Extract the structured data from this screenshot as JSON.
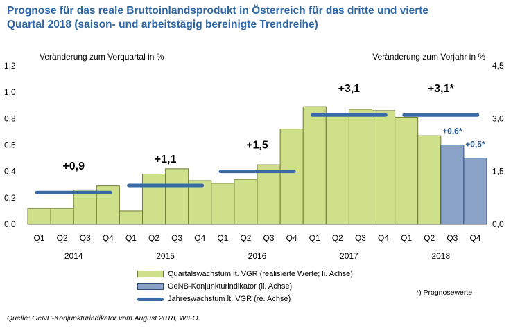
{
  "chart_data": {
    "type": "bar",
    "title_line1": "Prognose für das reale Bruttoinlandsprodukt in Österreich für das dritte und vierte",
    "title_line2": "Quartal 2018 (saison- und arbeitstägig bereinigte Trendreihe)",
    "left_axis_title": "Veränderung zum Vorquartal in %",
    "right_axis_title": "Veränderung zum Vorjahr in %",
    "left_ylim": [
      0,
      1.2
    ],
    "left_ticks": [
      "0,0",
      "0,2",
      "0,4",
      "0,6",
      "0,8",
      "1,0",
      "1,2"
    ],
    "right_ylim": [
      0,
      4.5
    ],
    "right_ticks": [
      "0,0",
      "1,5",
      "3,0",
      "4,5"
    ],
    "categories": [
      "Q1",
      "Q2",
      "Q3",
      "Q4",
      "Q1",
      "Q2",
      "Q3",
      "Q4",
      "Q1",
      "Q2",
      "Q3",
      "Q4",
      "Q1",
      "Q2",
      "Q3",
      "Q4",
      "Q1",
      "Q2",
      "Q3",
      "Q4"
    ],
    "years": [
      "2014",
      "2015",
      "2016",
      "2017",
      "2018"
    ],
    "series": [
      {
        "name": "Quartalswachstum lt. VGR (realisierte Werte; li. Achse)",
        "color": "#cfe08a",
        "values": [
          0.12,
          0.12,
          0.26,
          0.29,
          0.1,
          0.38,
          0.42,
          0.33,
          0.31,
          0.34,
          0.45,
          0.72,
          0.89,
          0.84,
          0.87,
          0.86,
          0.81,
          0.67,
          null,
          null
        ]
      },
      {
        "name": "OeNB-Konjunkturindikator (li. Achse)",
        "color": "#8aa2c8",
        "values": [
          null,
          null,
          null,
          null,
          null,
          null,
          null,
          null,
          null,
          null,
          null,
          null,
          null,
          null,
          null,
          null,
          null,
          null,
          0.6,
          0.5
        ]
      },
      {
        "name": "Jahreswachstum lt. VGR (re. Achse)",
        "color": "#3a6aa5",
        "annual_values": [
          0.9,
          1.1,
          1.5,
          3.1,
          3.1
        ],
        "annual_labels": [
          "+0,9",
          "+1,1",
          "+1,5",
          "+3,1",
          "+3,1*"
        ]
      }
    ],
    "bar_labels": [
      {
        "index": 18,
        "text": "+0,6*"
      },
      {
        "index": 19,
        "text": "+0,5*"
      }
    ]
  },
  "forecast_note": "*) Prognosewerte",
  "source": "Quelle: OeNB-Konjunkturindikator vom August 2018, WIFO."
}
